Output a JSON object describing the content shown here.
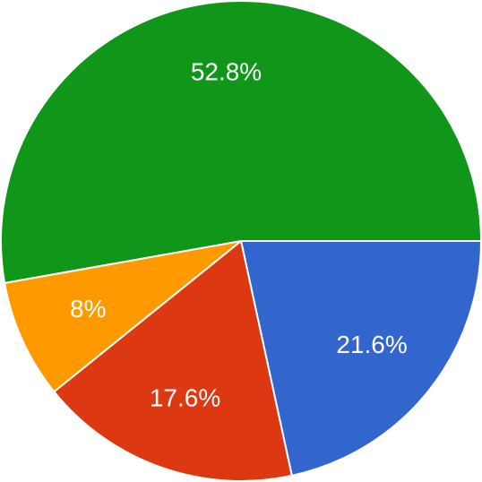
{
  "chart_data": {
    "type": "pie",
    "values": [
      21.6,
      17.6,
      8,
      52.8
    ],
    "value_labels": [
      "21.6%",
      "17.6%",
      "8%",
      "52.8%"
    ],
    "colors": [
      "#3366cc",
      "#dc3912",
      "#ff9900",
      "#109618"
    ]
  }
}
